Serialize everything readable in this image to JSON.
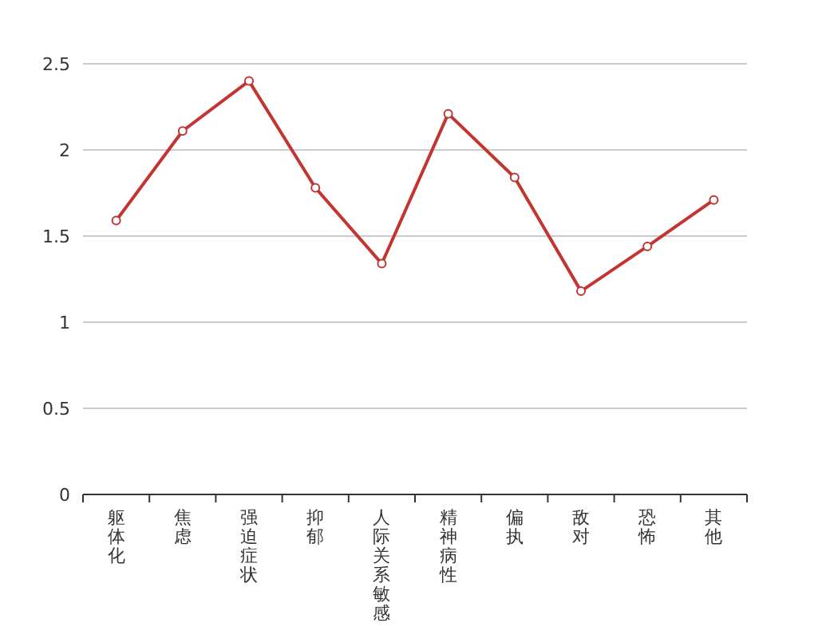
{
  "chart_data": {
    "type": "line",
    "categories": [
      "躯体化",
      "焦虑",
      "强迫症状",
      "抑郁",
      "人际关系敏感",
      "精神病性",
      "偏执",
      "敌对",
      "恐怖",
      "其他"
    ],
    "series": [
      {
        "color": "#c23531",
        "values": [
          1.59,
          2.11,
          2.4,
          1.78,
          1.34,
          2.21,
          1.84,
          1.18,
          1.44,
          1.71
        ]
      }
    ],
    "ylim": [
      0,
      2.5
    ],
    "yticks": [
      0,
      0.5,
      1,
      1.5,
      2,
      2.5
    ],
    "grid": "y",
    "marker": "circle",
    "line_style": "solid"
  }
}
